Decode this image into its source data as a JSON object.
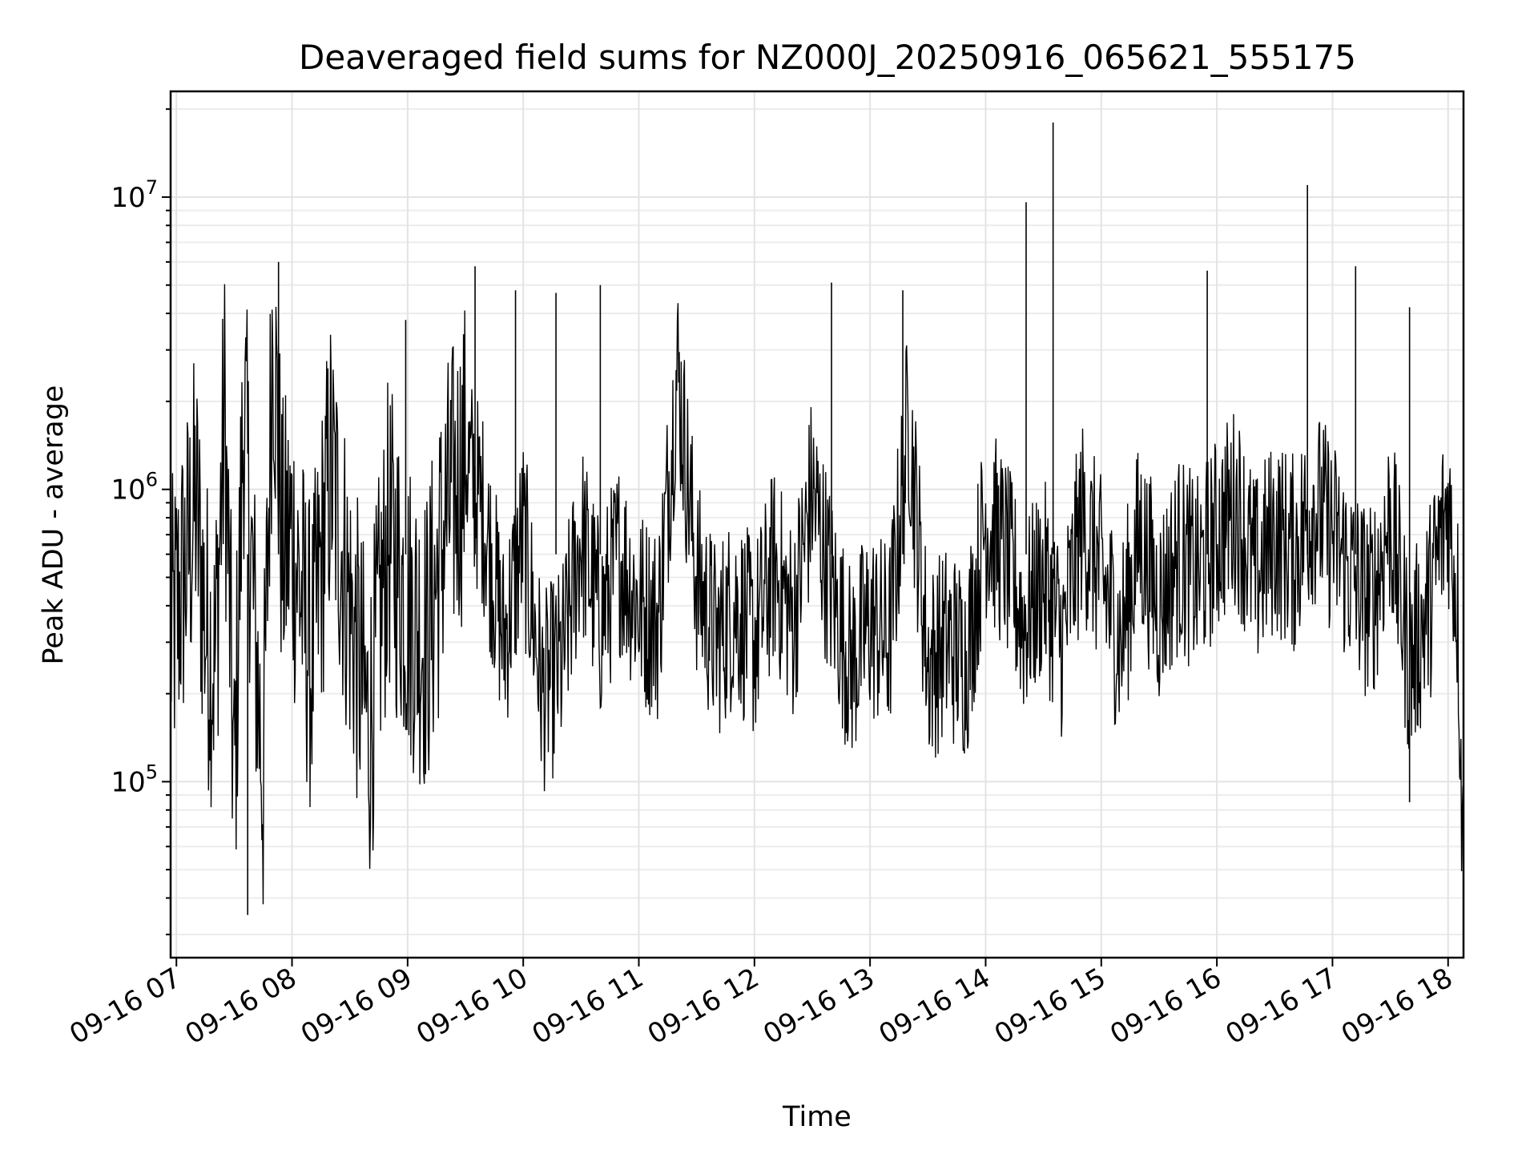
{
  "chart_data": {
    "type": "line",
    "title": "Deaveraged field sums for NZ000J_20250916_065621_555175",
    "xlabel": "Time",
    "ylabel": "Peak ADU - average",
    "yscale": "log",
    "ylim": [
      25000,
      23000000
    ],
    "xlim": [
      "2025-09-16T06:57",
      "2025-09-16T18:08"
    ],
    "grid": true,
    "line_color": "#000000",
    "x_ticks": [
      {
        "label": "09-16 07",
        "time": "2025-09-16T07:00"
      },
      {
        "label": "09-16 08",
        "time": "2025-09-16T08:00"
      },
      {
        "label": "09-16 09",
        "time": "2025-09-16T09:00"
      },
      {
        "label": "09-16 10",
        "time": "2025-09-16T10:00"
      },
      {
        "label": "09-16 11",
        "time": "2025-09-16T11:00"
      },
      {
        "label": "09-16 12",
        "time": "2025-09-16T12:00"
      },
      {
        "label": "09-16 13",
        "time": "2025-09-16T13:00"
      },
      {
        "label": "09-16 14",
        "time": "2025-09-16T14:00"
      },
      {
        "label": "09-16 15",
        "time": "2025-09-16T15:00"
      },
      {
        "label": "09-16 16",
        "time": "2025-09-16T16:00"
      },
      {
        "label": "09-16 17",
        "time": "2025-09-16T17:00"
      },
      {
        "label": "09-16 18",
        "time": "2025-09-16T18:00"
      }
    ],
    "y_ticks": [
      {
        "base": "10",
        "exp": "5",
        "value": 100000
      },
      {
        "base": "10",
        "exp": "6",
        "value": 1000000
      },
      {
        "base": "10",
        "exp": "7",
        "value": 10000000
      }
    ],
    "series": [
      {
        "x": [
          "2025-09-16T06:57",
          "2025-09-16T07:05",
          "2025-09-16T07:10",
          "2025-09-16T07:15",
          "2025-09-16T07:20",
          "2025-09-16T07:25",
          "2025-09-16T07:30",
          "2025-09-16T07:35",
          "2025-09-16T07:40",
          "2025-09-16T07:45",
          "2025-09-16T07:50",
          "2025-09-16T07:55",
          "2025-09-16T08:00",
          "2025-09-16T08:10",
          "2025-09-16T08:20",
          "2025-09-16T08:30",
          "2025-09-16T08:40",
          "2025-09-16T08:50",
          "2025-09-16T09:00",
          "2025-09-16T09:10",
          "2025-09-16T09:20",
          "2025-09-16T09:30",
          "2025-09-16T09:40",
          "2025-09-16T09:50",
          "2025-09-16T10:00",
          "2025-09-16T10:10",
          "2025-09-16T10:20",
          "2025-09-16T10:30",
          "2025-09-16T10:40",
          "2025-09-16T10:50",
          "2025-09-16T11:00",
          "2025-09-16T11:10",
          "2025-09-16T11:20",
          "2025-09-16T11:30",
          "2025-09-16T11:40",
          "2025-09-16T11:50",
          "2025-09-16T12:00",
          "2025-09-16T12:10",
          "2025-09-16T12:20",
          "2025-09-16T12:30",
          "2025-09-16T12:40",
          "2025-09-16T12:50",
          "2025-09-16T13:00",
          "2025-09-16T13:10",
          "2025-09-16T13:20",
          "2025-09-16T13:30",
          "2025-09-16T13:40",
          "2025-09-16T13:50",
          "2025-09-16T14:00",
          "2025-09-16T14:10",
          "2025-09-16T14:20",
          "2025-09-16T14:30",
          "2025-09-16T14:40",
          "2025-09-16T14:50",
          "2025-09-16T15:00",
          "2025-09-16T15:10",
          "2025-09-16T15:20",
          "2025-09-16T15:30",
          "2025-09-16T15:40",
          "2025-09-16T15:50",
          "2025-09-16T16:00",
          "2025-09-16T16:10",
          "2025-09-16T16:20",
          "2025-09-16T16:30",
          "2025-09-16T16:40",
          "2025-09-16T16:50",
          "2025-09-16T17:00",
          "2025-09-16T17:10",
          "2025-09-16T17:20",
          "2025-09-16T17:30",
          "2025-09-16T17:40",
          "2025-09-16T17:50",
          "2025-09-16T18:00",
          "2025-09-16T18:05",
          "2025-09-16T18:08"
        ],
        "y": [
          300000,
          550000,
          900000,
          350000,
          250000,
          1800000,
          90000,
          2000000,
          400000,
          100000,
          4000000,
          600000,
          700000,
          250000,
          1200000,
          400000,
          150000,
          700000,
          400000,
          300000,
          800000,
          1300000,
          800000,
          300000,
          700000,
          200000,
          250000,
          700000,
          350000,
          600000,
          400000,
          350000,
          2600000,
          500000,
          300000,
          400000,
          300000,
          550000,
          350000,
          1000000,
          450000,
          250000,
          350000,
          300000,
          1800000,
          250000,
          300000,
          260000,
          800000,
          600000,
          350000,
          500000,
          300000,
          800000,
          500000,
          300000,
          700000,
          400000,
          600000,
          500000,
          700000,
          900000,
          500000,
          700000,
          600000,
          900000,
          700000,
          500000,
          400000,
          800000,
          250000,
          400000,
          900000,
          400000,
          45000
        ]
      }
    ],
    "spikes": [
      {
        "time": "2025-09-16T07:53",
        "value": 6000000
      },
      {
        "time": "2025-09-16T07:37",
        "value": 35000
      },
      {
        "time": "2025-09-16T08:59",
        "value": 3800000
      },
      {
        "time": "2025-09-16T09:35",
        "value": 5800000
      },
      {
        "time": "2025-09-16T09:56",
        "value": 4800000
      },
      {
        "time": "2025-09-16T10:17",
        "value": 4700000
      },
      {
        "time": "2025-09-16T10:40",
        "value": 5000000
      },
      {
        "time": "2025-09-16T12:40",
        "value": 5100000
      },
      {
        "time": "2025-09-16T13:17",
        "value": 4800000
      },
      {
        "time": "2025-09-16T14:21",
        "value": 9600000
      },
      {
        "time": "2025-09-16T14:35",
        "value": 18000000
      },
      {
        "time": "2025-09-16T15:55",
        "value": 5600000
      },
      {
        "time": "2025-09-16T16:47",
        "value": 11000000
      },
      {
        "time": "2025-09-16T17:12",
        "value": 5800000
      },
      {
        "time": "2025-09-16T17:40",
        "value": 4200000
      },
      {
        "time": "2025-09-16T17:40",
        "value": 85000
      }
    ]
  }
}
